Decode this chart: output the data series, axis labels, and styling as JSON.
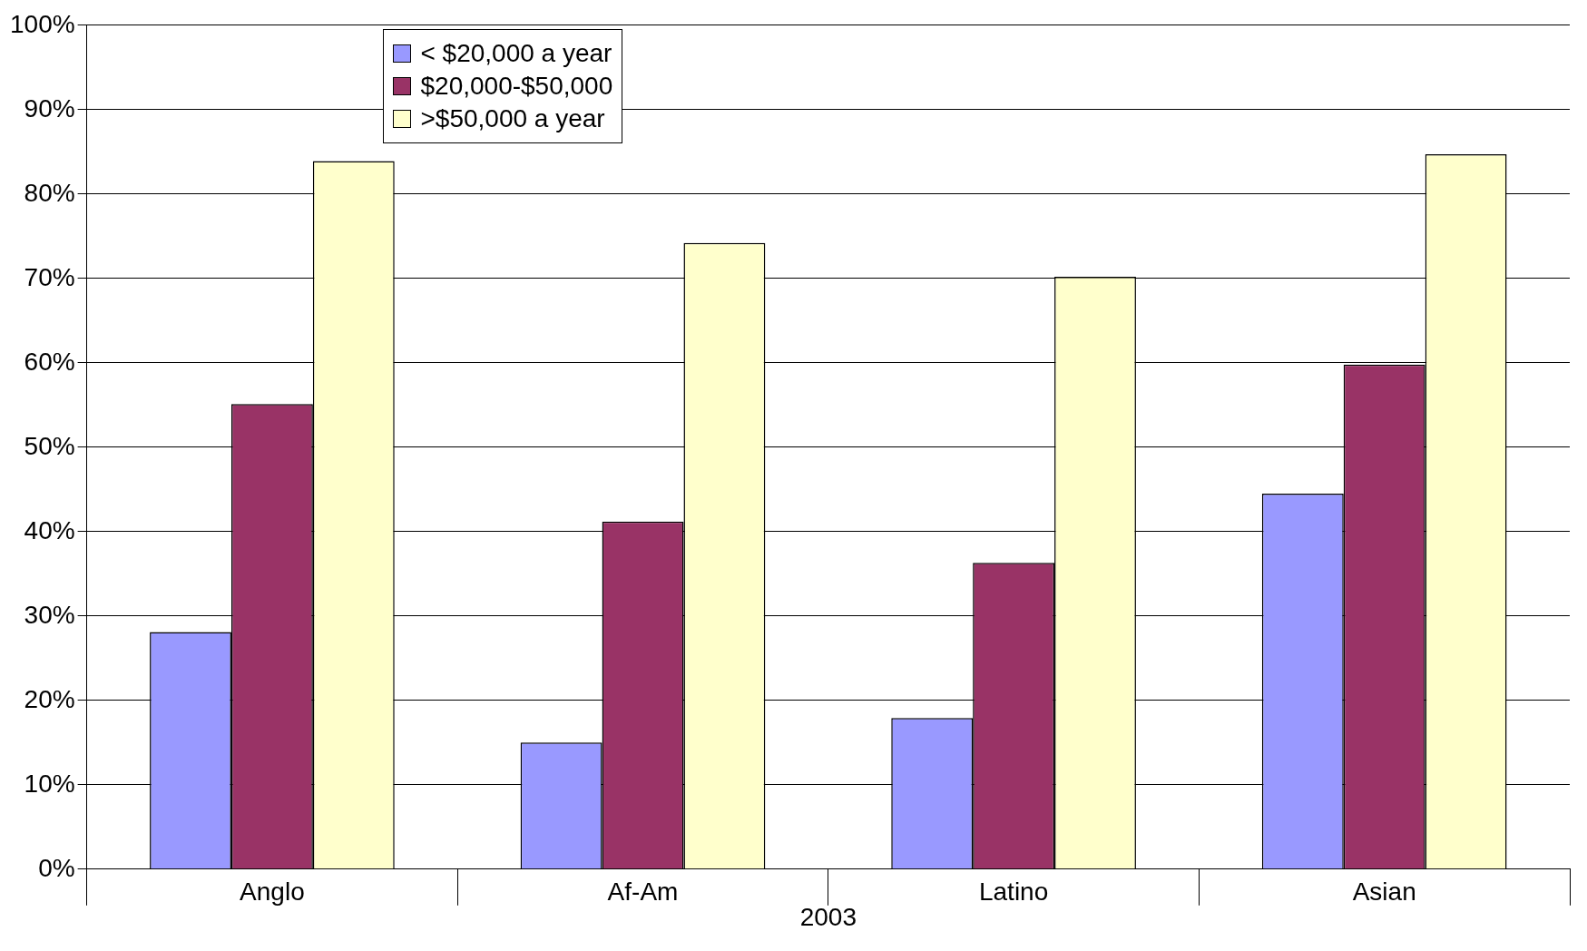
{
  "chart_data": {
    "type": "bar",
    "xlabel": "2003",
    "categories": [
      "Anglo",
      "Af-Am",
      "Latino",
      "Asian"
    ],
    "series": [
      {
        "name": "< $20,000 a year",
        "color": "#9999ff",
        "values": [
          28.1,
          15.0,
          17.9,
          44.5
        ]
      },
      {
        "name": "$20,000-$50,000",
        "color": "#993366",
        "values": [
          55.1,
          41.2,
          36.3,
          59.8
        ]
      },
      {
        "name": ">$50,000 a year",
        "color": "#ffffcc",
        "values": [
          83.9,
          74.2,
          70.2,
          84.7
        ]
      }
    ],
    "ylim": [
      0,
      100
    ],
    "yticks": [
      {
        "value": 0,
        "label": "0%"
      },
      {
        "value": 10,
        "label": "10%"
      },
      {
        "value": 20,
        "label": "20%"
      },
      {
        "value": 30,
        "label": "30%"
      },
      {
        "value": 40,
        "label": "40%"
      },
      {
        "value": 50,
        "label": "50%"
      },
      {
        "value": 60,
        "label": "60%"
      },
      {
        "value": 70,
        "label": "70%"
      },
      {
        "value": 80,
        "label": "80%"
      },
      {
        "value": 90,
        "label": "90%"
      },
      {
        "value": 100,
        "label": "100%"
      }
    ],
    "grid": "y",
    "legend": "top left"
  }
}
